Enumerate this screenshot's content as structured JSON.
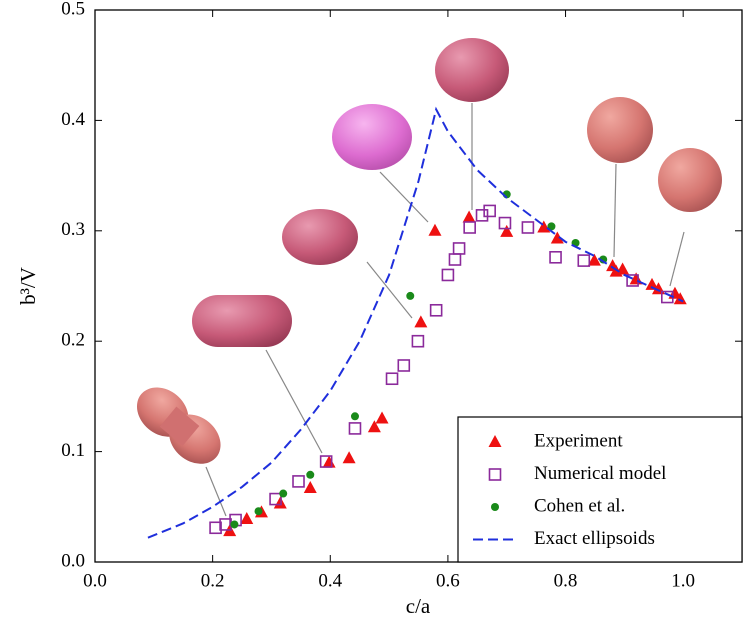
{
  "chart_data": {
    "type": "scatter",
    "xlabel": "c/a",
    "ylabel": "b³/V",
    "xlim": [
      0,
      1.1
    ],
    "ylim": [
      0,
      0.5
    ],
    "xticks": [
      {
        "value": 0,
        "label": "0.0"
      },
      {
        "value": 0.2,
        "label": "0.2"
      },
      {
        "value": 0.4,
        "label": "0.4"
      },
      {
        "value": 0.6,
        "label": "0.6"
      },
      {
        "value": 0.8,
        "label": "0.8"
      },
      {
        "value": 1,
        "label": "1.0"
      }
    ],
    "yticks": [
      {
        "value": 0,
        "label": "0.0"
      },
      {
        "value": 0.1,
        "label": "0.1"
      },
      {
        "value": 0.2,
        "label": "0.2"
      },
      {
        "value": 0.3,
        "label": "0.3"
      },
      {
        "value": 0.4,
        "label": "0.4"
      },
      {
        "value": 0.5,
        "label": "0.5"
      }
    ],
    "legend": "lower right",
    "series": [
      {
        "name": "Experiment",
        "color": "#ee1111",
        "marker": "triangle",
        "x": [
          0.229,
          0.258,
          0.283,
          0.315,
          0.366,
          0.398,
          0.432,
          0.475,
          0.488,
          0.554,
          0.578,
          0.636,
          0.7,
          0.763,
          0.786,
          0.849,
          0.88,
          0.886,
          0.897,
          0.92,
          0.947,
          0.958,
          0.986,
          0.995
        ],
        "values": [
          0.028,
          0.039,
          0.045,
          0.053,
          0.067,
          0.09,
          0.094,
          0.122,
          0.13,
          0.217,
          0.3,
          0.312,
          0.299,
          0.303,
          0.293,
          0.273,
          0.268,
          0.263,
          0.265,
          0.256,
          0.251,
          0.247,
          0.243,
          0.238
        ]
      },
      {
        "name": "Numerical model",
        "color": "#8b2a9b",
        "marker": "square",
        "x": [
          0.205,
          0.222,
          0.239,
          0.307,
          0.346,
          0.393,
          0.442,
          0.505,
          0.525,
          0.549,
          0.58,
          0.6,
          0.612,
          0.619,
          0.637,
          0.658,
          0.671,
          0.697,
          0.736,
          0.783,
          0.831,
          0.914,
          0.973
        ],
        "values": [
          0.031,
          0.034,
          0.038,
          0.057,
          0.073,
          0.091,
          0.121,
          0.166,
          0.178,
          0.2,
          0.228,
          0.26,
          0.274,
          0.284,
          0.303,
          0.314,
          0.318,
          0.307,
          0.303,
          0.276,
          0.273,
          0.255,
          0.24
        ]
      },
      {
        "name": "Cohen et al.",
        "color": "#1a8a1a",
        "marker": "circle",
        "x": [
          0.237,
          0.278,
          0.32,
          0.366,
          0.442,
          0.536,
          0.7,
          0.776,
          0.817,
          0.864
        ],
        "values": [
          0.034,
          0.046,
          0.062,
          0.079,
          0.132,
          0.241,
          0.333,
          0.304,
          0.289,
          0.274
        ]
      },
      {
        "name": "Exact ellipsoids",
        "color": "#1f2fdc",
        "marker": "dashed-line",
        "x": [
          0.09,
          0.15,
          0.2,
          0.25,
          0.3,
          0.35,
          0.4,
          0.45,
          0.5,
          0.55,
          0.58,
          0.6,
          0.65,
          0.7,
          0.75,
          0.8,
          0.85,
          0.9,
          0.95,
          1.0
        ],
        "values": [
          0.022,
          0.035,
          0.05,
          0.068,
          0.09,
          0.12,
          0.155,
          0.2,
          0.26,
          0.345,
          0.41,
          0.39,
          0.355,
          0.33,
          0.31,
          0.29,
          0.277,
          0.26,
          0.248,
          0.236
        ]
      }
    ]
  }
}
